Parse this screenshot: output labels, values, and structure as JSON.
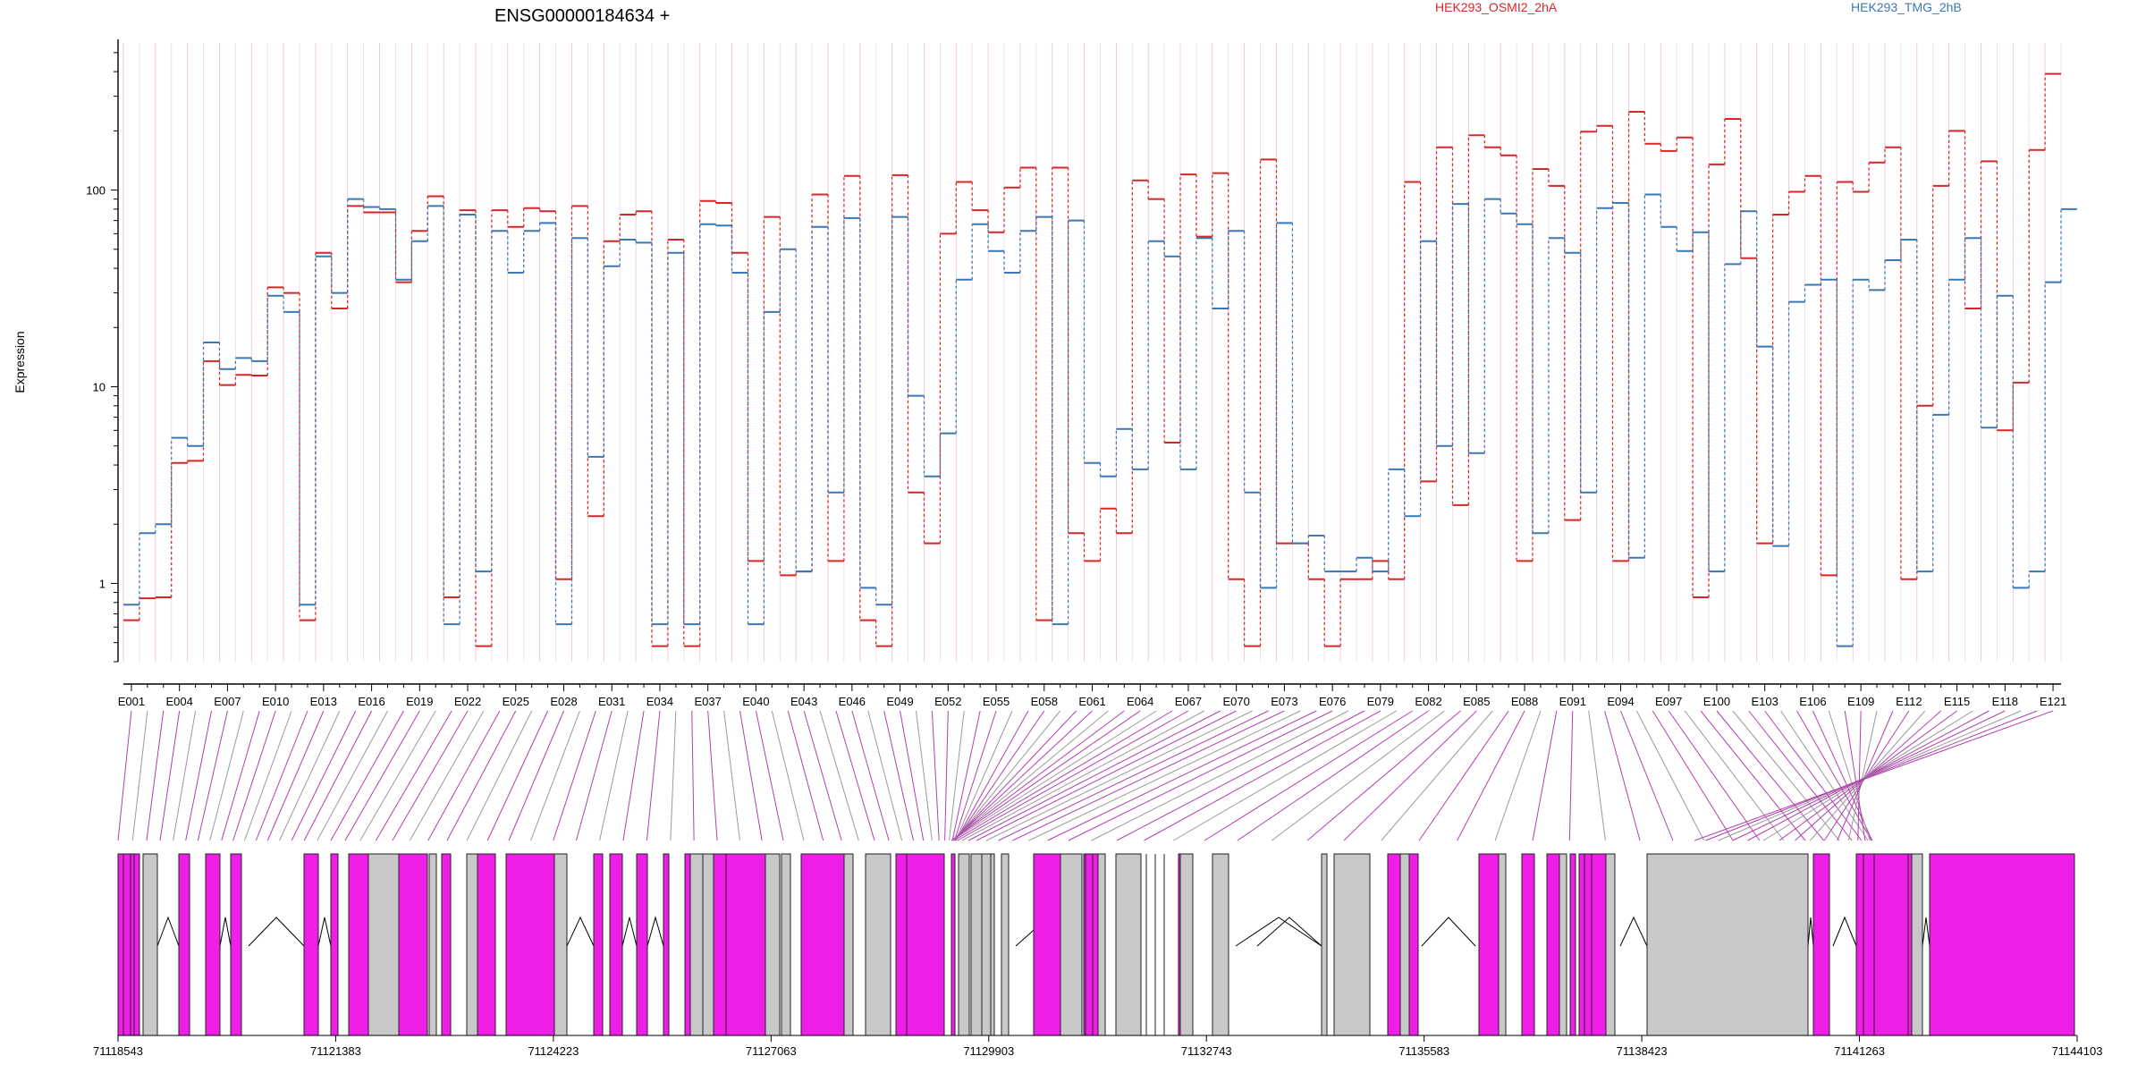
{
  "chart_data": {
    "type": "line",
    "title": "ENSG00000184634 +",
    "ylabel": "Expression",
    "yscale": "log",
    "ylim": [
      0.4,
      560
    ],
    "y_ticks": [
      "1",
      "10",
      "100"
    ],
    "y_tick_values": [
      1,
      10,
      100
    ],
    "x_tick_labels": [
      "E001",
      "E004",
      "E007",
      "E010",
      "E013",
      "E016",
      "E019",
      "E022",
      "E025",
      "E028",
      "E031",
      "E034",
      "E037",
      "E040",
      "E043",
      "E046",
      "E049",
      "E052",
      "E055",
      "E058",
      "E061",
      "E064",
      "E067",
      "E070",
      "E073",
      "E076",
      "E079",
      "E082",
      "E085",
      "E088",
      "E091",
      "E094",
      "E097",
      "E100",
      "E103",
      "E106",
      "E109",
      "E112",
      "E115",
      "E118",
      "E121"
    ],
    "series": [
      {
        "name": "HEK293_OSMI2_2hA",
        "color": "#d62728",
        "values": [
          0.65,
          0.84,
          0.85,
          4.1,
          4.2,
          13.5,
          10.2,
          11.5,
          11.4,
          32,
          30,
          0.65,
          48,
          25,
          83,
          77,
          77,
          34,
          62,
          93,
          0.85,
          79,
          0.48,
          79,
          65,
          81,
          78,
          1.05,
          83,
          2.2,
          55,
          75,
          78,
          0.48,
          56,
          0.48,
          88,
          86,
          48,
          1.3,
          73,
          1.1,
          1.15,
          95,
          1.3,
          118,
          0.65,
          0.48,
          119,
          2.9,
          1.6,
          60,
          110,
          79,
          61,
          103,
          130,
          0.65,
          130,
          1.8,
          1.3,
          2.4,
          1.8,
          112,
          90,
          5.2,
          120,
          58,
          122,
          1.05,
          0.48,
          143,
          1.6,
          1.6,
          1.05,
          0.48,
          1.05,
          1.05,
          1.3,
          1.05,
          110,
          3.3,
          165,
          2.5,
          190,
          165,
          150,
          1.3,
          128,
          105,
          2.1,
          198,
          212,
          1.3,
          250,
          172,
          158,
          185,
          0.85,
          135,
          230,
          45,
          1.6,
          75,
          98,
          118,
          1.1,
          110,
          98,
          138,
          165,
          1.05,
          8,
          105,
          200,
          25,
          140,
          6,
          10.5,
          160,
          390
        ]
      },
      {
        "name": "HEK293_TMG_2hB",
        "color": "#3a78b5",
        "values": [
          0.78,
          1.8,
          2.0,
          5.5,
          5.0,
          16.8,
          12.3,
          14,
          13.5,
          29,
          24,
          0.78,
          46,
          30,
          90,
          82,
          80,
          35,
          55,
          83,
          0.62,
          75,
          1.15,
          62,
          38,
          62,
          68,
          0.62,
          57,
          4.4,
          41,
          56,
          54,
          0.62,
          48,
          0.62,
          67,
          66,
          38,
          0.62,
          24,
          50,
          1.15,
          65,
          2.9,
          72,
          0.95,
          0.78,
          73,
          9,
          3.5,
          5.8,
          35,
          67,
          49,
          38,
          62,
          73,
          0.62,
          70,
          4.1,
          3.5,
          6.1,
          3.8,
          55,
          46,
          3.8,
          57,
          25,
          62,
          2.9,
          0.95,
          68,
          1.6,
          1.75,
          1.15,
          1.15,
          1.35,
          1.15,
          3.8,
          2.2,
          55,
          5,
          85,
          4.6,
          90,
          76,
          67,
          1.8,
          57,
          48,
          2.9,
          81,
          86,
          1.35,
          95,
          65,
          49,
          61,
          1.15,
          42,
          78,
          16,
          1.55,
          27,
          33,
          35,
          0.48,
          35,
          31,
          44,
          56,
          1.15,
          7.2,
          35,
          57,
          6.2,
          29,
          0.95,
          1.15,
          34,
          80
        ]
      }
    ],
    "genomic_ticks": [
      "71118543",
      "71121383",
      "71124223",
      "71127063",
      "71129903",
      "71132743",
      "71135583",
      "71138423",
      "71141263",
      "71144103"
    ],
    "exon_colors": {
      "highlighted": "#f01fe8",
      "other": "#c8c8c8"
    }
  }
}
